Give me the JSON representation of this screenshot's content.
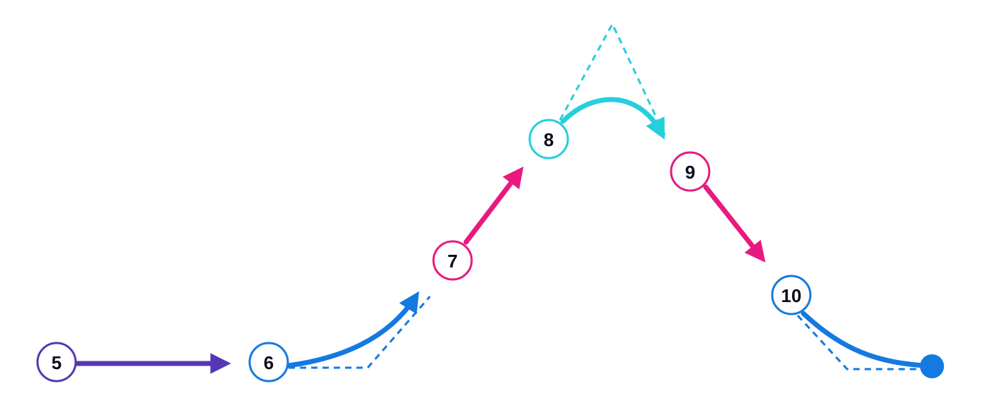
{
  "nodes": [
    {
      "id": "n5",
      "label": "5",
      "color": "#5537b5"
    },
    {
      "id": "n6",
      "label": "6",
      "color": "#1479e0"
    },
    {
      "id": "n7",
      "label": "7",
      "color": "#e8197f"
    },
    {
      "id": "n8",
      "label": "8",
      "color": "#26cfdc"
    },
    {
      "id": "n9",
      "label": "9",
      "color": "#e8197f"
    },
    {
      "id": "n10",
      "label": "10",
      "color": "#1479e0"
    }
  ],
  "end_marker": {
    "color": "#1479e0"
  },
  "colors": {
    "purple": "#5537b5",
    "blue": "#1479e0",
    "pink": "#e8197f",
    "cyan": "#26cfdc",
    "label_text": "#0d0d1a"
  }
}
